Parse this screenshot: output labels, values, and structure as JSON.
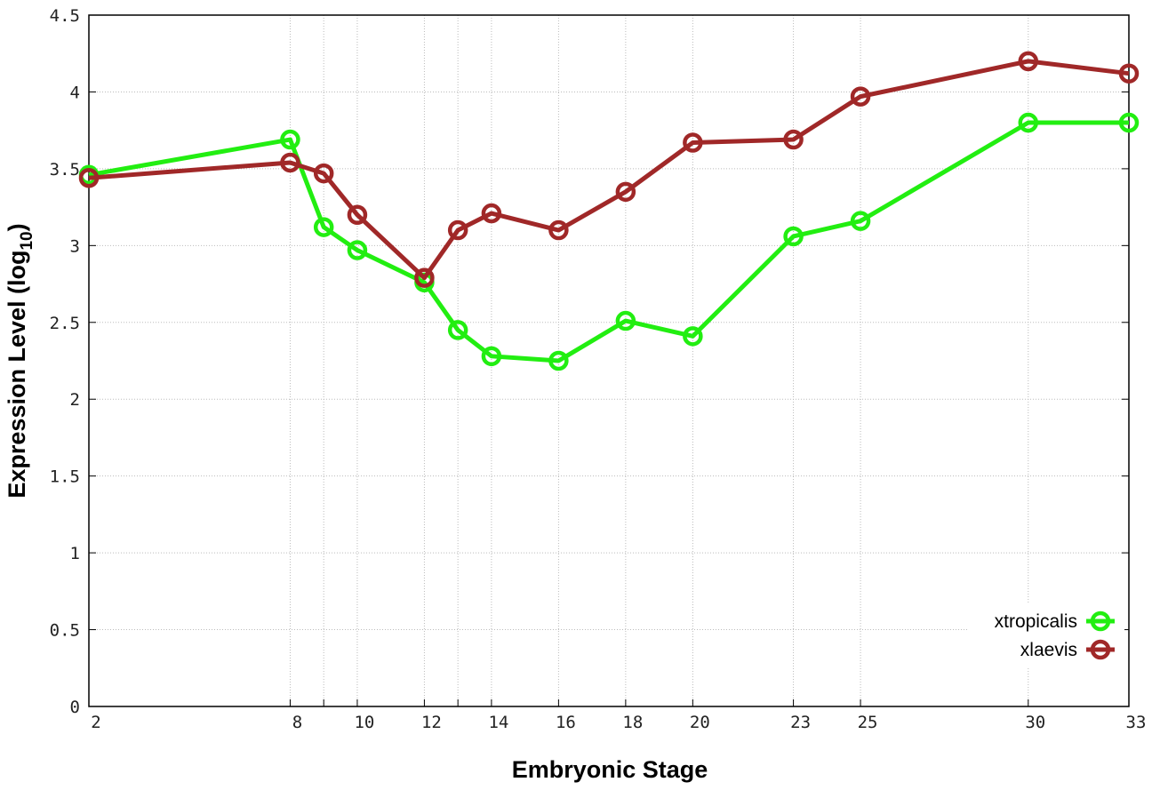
{
  "chart_data": {
    "type": "line",
    "xlabel": "Embryonic Stage",
    "ylabel": "Expression Level (log10)",
    "ylabel_main": "Expression Level (log",
    "ylabel_sub": "10",
    "ylabel_close": ")",
    "x_ticks": [
      2,
      8,
      10,
      12,
      14,
      16,
      18,
      20,
      23,
      25,
      30,
      33
    ],
    "x_tick_labels": [
      "2",
      "8",
      "10",
      "12",
      "14",
      "16",
      "18",
      "20",
      "23",
      "25",
      "30",
      "33"
    ],
    "x_gridlines": [
      2,
      8,
      9,
      10,
      12,
      13,
      14,
      16,
      18,
      20,
      23,
      25,
      30,
      33
    ],
    "xlim": [
      2,
      33
    ],
    "ylim": [
      0,
      4.5
    ],
    "y_ticks": [
      0,
      0.5,
      1,
      1.5,
      2,
      2.5,
      3,
      3.5,
      4,
      4.5
    ],
    "y_tick_labels": [
      "0",
      "0.5",
      "1",
      "1.5",
      "2",
      "2.5",
      "3",
      "3.5",
      "4",
      "4.5"
    ],
    "grid": true,
    "legend_position": "bottom-right",
    "x": [
      2,
      8,
      9,
      10,
      12,
      13,
      14,
      16,
      18,
      20,
      23,
      25,
      30,
      33
    ],
    "series": [
      {
        "name": "xtropicalis",
        "color": "#22ee11",
        "values": [
          3.46,
          3.69,
          3.12,
          2.97,
          2.76,
          2.45,
          2.28,
          2.25,
          2.51,
          2.41,
          3.06,
          3.16,
          3.8,
          3.8
        ]
      },
      {
        "name": "xlaevis",
        "color": "#a02828",
        "values": [
          3.44,
          3.54,
          3.47,
          3.2,
          2.79,
          3.1,
          3.21,
          3.1,
          3.35,
          3.67,
          3.69,
          3.97,
          4.2,
          4.12
        ]
      }
    ]
  }
}
